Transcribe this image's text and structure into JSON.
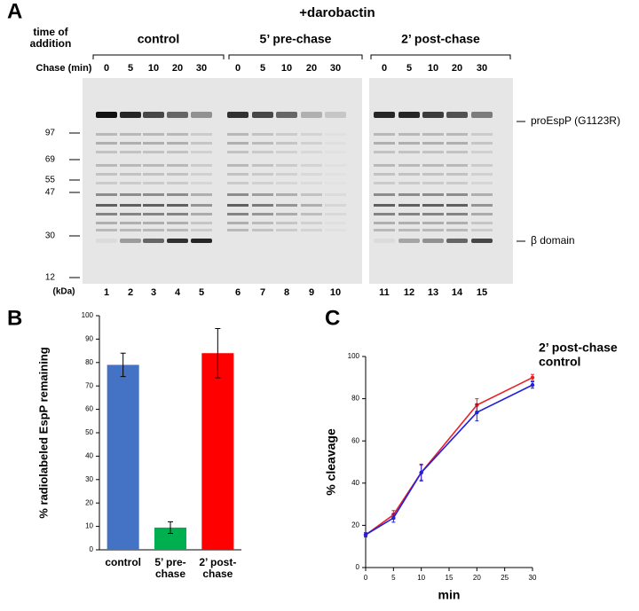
{
  "panels": {
    "a": {
      "label": "A",
      "treatment": "+darobactin",
      "time_header": "time of addition",
      "groups": [
        "control",
        "5’ pre-chase",
        "2’ post-chase"
      ],
      "chase_header": "Chase (min)",
      "chase_times": [
        [
          0,
          5,
          10,
          20,
          30
        ],
        [
          0,
          5,
          10,
          20,
          30
        ],
        [
          0,
          5,
          10,
          20,
          30
        ]
      ],
      "markers": [
        97,
        69,
        55,
        47,
        30,
        12
      ],
      "marker_unit": "(kDa)",
      "lanes": [
        1,
        2,
        3,
        4,
        5,
        6,
        7,
        8,
        9,
        10,
        11,
        12,
        13,
        14,
        15
      ],
      "band_labels": [
        "proEspP (G1123R)",
        "β domain"
      ]
    },
    "b": {
      "label": "B"
    },
    "c": {
      "label": "C"
    }
  },
  "chart_data": [
    {
      "type": "bar",
      "ylabel": "% radiolabeled EspP remaining",
      "categories": [
        "control",
        "5’ pre-chase",
        "2’ post-chase"
      ],
      "values": [
        79,
        9.5,
        84
      ],
      "errors": [
        5,
        2.5,
        10.5
      ],
      "colors": [
        "#4472c4",
        "#00b050",
        "#ff0000"
      ],
      "ylim": [
        0,
        100
      ],
      "yticks": [
        0,
        10,
        20,
        30,
        40,
        50,
        60,
        70,
        80,
        90,
        100
      ]
    },
    {
      "type": "line",
      "xlabel": "min",
      "ylabel": "% cleavage",
      "x": [
        0,
        5,
        10,
        20,
        30
      ],
      "series": [
        {
          "name": "2’ post-chase",
          "color": "#e8202a",
          "values": [
            15.5,
            25,
            45,
            77,
            90
          ],
          "errors": [
            1,
            2,
            3.5,
            3,
            1.5
          ]
        },
        {
          "name": "control",
          "color": "#2020e0",
          "values": [
            15.5,
            23.5,
            45,
            73.5,
            86.5
          ],
          "errors": [
            1,
            2,
            4,
            4,
            1.5
          ]
        }
      ],
      "xlim": [
        0,
        30
      ],
      "xticks": [
        0,
        5,
        10,
        15,
        20,
        25,
        30
      ],
      "ylim": [
        0,
        100
      ],
      "yticks": [
        0,
        20,
        40,
        60,
        80,
        100
      ]
    }
  ]
}
